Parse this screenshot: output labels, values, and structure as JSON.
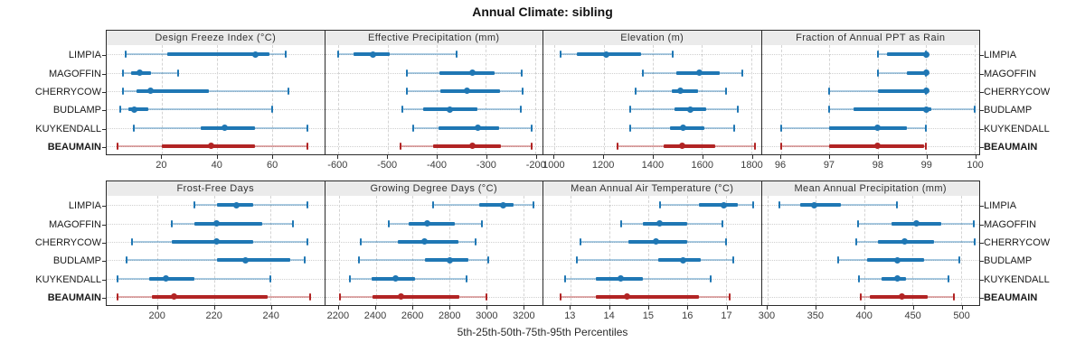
{
  "title": "Annual Climate: sibling",
  "xlabel": "5th-25th-50th-75th-95th Percentiles",
  "percentile_labels": [
    "5th",
    "25th",
    "50th",
    "75th",
    "95th"
  ],
  "sites": [
    {
      "name": "LIMPIA",
      "bold": false
    },
    {
      "name": "MAGOFFIN",
      "bold": false
    },
    {
      "name": "CHERRYCOW",
      "bold": false
    },
    {
      "name": "BUDLAMP",
      "bold": false
    },
    {
      "name": "KUYKENDALL",
      "bold": false
    },
    {
      "name": "BEAUMAIN",
      "bold": true
    }
  ],
  "colors": {
    "series_blue": "#1f77b4",
    "series_blue_light": "rgba(31,119,180,0.38)",
    "highlight_red": "#b22424",
    "highlight_red_light": "rgba(178,36,36,0.38)",
    "strip_bg": "#ebebeb",
    "border": "#2b2b2b",
    "grid": "#d4d4d4"
  },
  "chart_data": [
    {
      "type": "dot-whisker",
      "title": "Design Freeze Index (°C)",
      "row": 0,
      "col": 0,
      "xlim": [
        0,
        79
      ],
      "ticks": [
        20,
        40,
        60
      ],
      "series": [
        {
          "site": "LIMPIA",
          "values": [
            7,
            22,
            54,
            59,
            65
          ]
        },
        {
          "site": "MAGOFFIN",
          "values": [
            6,
            9,
            12,
            16,
            26
          ]
        },
        {
          "site": "CHERRYCOW",
          "values": [
            6,
            11,
            16,
            37,
            66
          ]
        },
        {
          "site": "BUDLAMP",
          "values": [
            5,
            8,
            10,
            15,
            60
          ]
        },
        {
          "site": "KUYKENDALL",
          "values": [
            10,
            34,
            43,
            54,
            73
          ]
        },
        {
          "site": "BEAUMAIN",
          "values": [
            4,
            20,
            38,
            54,
            73
          ]
        }
      ]
    },
    {
      "type": "dot-whisker",
      "title": "Effective Precipitation (mm)",
      "row": 0,
      "col": 1,
      "xlim": [
        -627,
        -185
      ],
      "ticks": [
        -600,
        -500,
        -400,
        -300,
        -200
      ],
      "series": [
        {
          "site": "LIMPIA",
          "values": [
            -600,
            -570,
            -530,
            -495,
            -360
          ]
        },
        {
          "site": "MAGOFFIN",
          "values": [
            -460,
            -395,
            -327,
            -283,
            -228
          ]
        },
        {
          "site": "CHERRYCOW",
          "values": [
            -460,
            -393,
            -338,
            -272,
            -226
          ]
        },
        {
          "site": "BUDLAMP",
          "values": [
            -470,
            -427,
            -373,
            -317,
            -229
          ]
        },
        {
          "site": "KUYKENDALL",
          "values": [
            -448,
            -396,
            -316,
            -274,
            -207
          ]
        },
        {
          "site": "BEAUMAIN",
          "values": [
            -474,
            -408,
            -327,
            -269,
            -207
          ]
        }
      ]
    },
    {
      "type": "dot-whisker",
      "title": "Elevation (m)",
      "row": 0,
      "col": 2,
      "xlim": [
        955,
        1840
      ],
      "ticks": [
        1000,
        1200,
        1400,
        1600,
        1800
      ],
      "series": [
        {
          "site": "LIMPIA",
          "values": [
            1025,
            1090,
            1210,
            1353,
            1480
          ]
        },
        {
          "site": "MAGOFFIN",
          "values": [
            1360,
            1495,
            1590,
            1672,
            1765
          ]
        },
        {
          "site": "CHERRYCOW",
          "values": [
            1330,
            1478,
            1513,
            1583,
            1700
          ]
        },
        {
          "site": "BUDLAMP",
          "values": [
            1310,
            1488,
            1552,
            1617,
            1746
          ]
        },
        {
          "site": "KUYKENDALL",
          "values": [
            1308,
            1470,
            1523,
            1611,
            1731
          ]
        },
        {
          "site": "BEAUMAIN",
          "values": [
            1255,
            1445,
            1521,
            1654,
            1815
          ]
        }
      ]
    },
    {
      "type": "dot-whisker",
      "title": "Fraction of Annual PPT as Rain",
      "row": 0,
      "col": 3,
      "xlim": [
        95.6,
        100.1
      ],
      "ticks": [
        96,
        97,
        98,
        99,
        100
      ],
      "series": [
        {
          "site": "LIMPIA",
          "values": [
            98,
            98.2,
            99,
            99,
            99
          ]
        },
        {
          "site": "MAGOFFIN",
          "values": [
            98,
            98.6,
            99,
            99,
            99
          ]
        },
        {
          "site": "CHERRYCOW",
          "values": [
            97,
            98,
            99,
            99,
            99
          ]
        },
        {
          "site": "BUDLAMP",
          "values": [
            97,
            97.5,
            99,
            99.1,
            100
          ]
        },
        {
          "site": "KUYKENDALL",
          "values": [
            96,
            97,
            98,
            98.6,
            99
          ]
        },
        {
          "site": "BEAUMAIN",
          "values": [
            96,
            97,
            98,
            98.95,
            99
          ]
        }
      ]
    },
    {
      "type": "dot-whisker",
      "title": "Frost-Free Days",
      "row": 1,
      "col": 0,
      "xlim": [
        182,
        259
      ],
      "ticks": [
        200,
        220,
        240
      ],
      "series": [
        {
          "site": "LIMPIA",
          "values": [
            213,
            221,
            228,
            234,
            253
          ]
        },
        {
          "site": "MAGOFFIN",
          "values": [
            205,
            213,
            221,
            237,
            248
          ]
        },
        {
          "site": "CHERRYCOW",
          "values": [
            191,
            205,
            221,
            234,
            253
          ]
        },
        {
          "site": "BUDLAMP",
          "values": [
            189,
            221,
            231,
            247,
            252
          ]
        },
        {
          "site": "KUYKENDALL",
          "values": [
            186,
            197,
            203,
            213,
            240
          ]
        },
        {
          "site": "BEAUMAIN",
          "values": [
            186,
            198,
            206,
            239,
            254
          ]
        }
      ]
    },
    {
      "type": "dot-whisker",
      "title": "Growing Degree Days (°C)",
      "row": 1,
      "col": 1,
      "xlim": [
        2125,
        3305
      ],
      "ticks": [
        2200,
        2400,
        2600,
        2800,
        3000,
        3200
      ],
      "series": [
        {
          "site": "LIMPIA",
          "values": [
            2710,
            2960,
            3090,
            3150,
            3255
          ]
        },
        {
          "site": "MAGOFFIN",
          "values": [
            2473,
            2579,
            2680,
            2831,
            2977
          ]
        },
        {
          "site": "CHERRYCOW",
          "values": [
            2320,
            2522,
            2663,
            2847,
            2940
          ]
        },
        {
          "site": "BUDLAMP",
          "values": [
            2307,
            2668,
            2802,
            2904,
            3010
          ]
        },
        {
          "site": "KUYKENDALL",
          "values": [
            2262,
            2376,
            2509,
            2611,
            2893
          ]
        },
        {
          "site": "BEAUMAIN",
          "values": [
            2205,
            2384,
            2538,
            2855,
            3002
          ]
        }
      ]
    },
    {
      "type": "dot-whisker",
      "title": "Mean Annual Air Temperature (°C)",
      "row": 1,
      "col": 2,
      "xlim": [
        12.3,
        17.9
      ],
      "ticks": [
        13,
        14,
        15,
        16,
        17
      ],
      "series": [
        {
          "site": "LIMPIA",
          "values": [
            15.3,
            16.3,
            16.95,
            17.3,
            17.7
          ]
        },
        {
          "site": "MAGOFFIN",
          "values": [
            14.3,
            14.85,
            15.3,
            16.0,
            16.9
          ]
        },
        {
          "site": "CHERRYCOW",
          "values": [
            13.25,
            14.5,
            15.2,
            16.0,
            17.0
          ]
        },
        {
          "site": "BUDLAMP",
          "values": [
            13.15,
            15.25,
            15.9,
            16.35,
            17.2
          ]
        },
        {
          "site": "KUYKENDALL",
          "values": [
            12.85,
            13.65,
            14.3,
            14.85,
            16.6
          ]
        },
        {
          "site": "BEAUMAIN",
          "values": [
            12.75,
            13.65,
            14.45,
            16.3,
            17.1
          ]
        }
      ]
    },
    {
      "type": "dot-whisker",
      "title": "Mean Annual Precipitation (mm)",
      "row": 1,
      "col": 3,
      "xlim": [
        294,
        519
      ],
      "ticks": [
        300,
        350,
        400,
        450,
        500
      ],
      "series": [
        {
          "site": "LIMPIA",
          "values": [
            312,
            334,
            348,
            376,
            434
          ]
        },
        {
          "site": "MAGOFFIN",
          "values": [
            394,
            428,
            454,
            480,
            513
          ]
        },
        {
          "site": "CHERRYCOW",
          "values": [
            392,
            414,
            442,
            472,
            514
          ]
        },
        {
          "site": "BUDLAMP",
          "values": [
            373,
            403,
            434,
            462,
            498
          ]
        },
        {
          "site": "KUYKENDALL",
          "values": [
            395,
            418,
            434,
            443,
            487
          ]
        },
        {
          "site": "BEAUMAIN",
          "values": [
            396,
            406,
            439,
            466,
            493
          ]
        }
      ]
    }
  ]
}
